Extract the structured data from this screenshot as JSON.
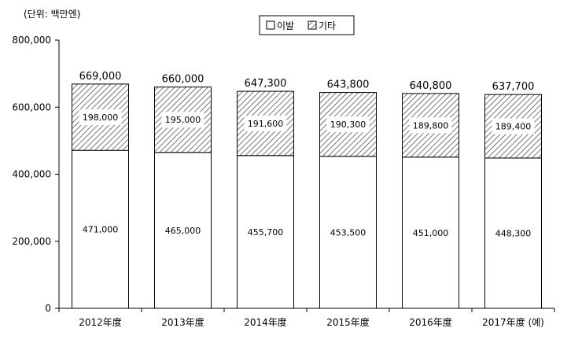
{
  "chart_data": {
    "type": "bar",
    "stacked": true,
    "unit_label": "(단위: 백만엔)",
    "categories": [
      "2012年度",
      "2013年度",
      "2014年度",
      "2015年度",
      "2016年度",
      "2017年度 (예)"
    ],
    "series": [
      {
        "name": "이발",
        "values": [
          471000,
          465000,
          455700,
          453500,
          451000,
          448300
        ],
        "value_labels": [
          "471,000",
          "465,000",
          "455,700",
          "453,500",
          "451,000",
          "448,300"
        ],
        "fill": "#ffffff"
      },
      {
        "name": "기타",
        "values": [
          198000,
          195000,
          191600,
          190300,
          189800,
          189400
        ],
        "value_labels": [
          "198,000",
          "195,000",
          "191,600",
          "190,300",
          "189,800",
          "189,400"
        ],
        "fill": "hatch"
      }
    ],
    "totals": [
      669000,
      660000,
      647300,
      643800,
      640800,
      637700
    ],
    "total_labels": [
      "669,000",
      "660,000",
      "647,300",
      "643,800",
      "640,800",
      "637,700"
    ],
    "ylim": [
      0,
      800000
    ],
    "yticks": [
      0,
      200000,
      400000,
      600000,
      800000
    ],
    "ytick_labels": [
      "0",
      "200,000",
      "400,000",
      "600,000",
      "800,000"
    ],
    "grid": false,
    "legend_position": "top-center",
    "colors": {
      "bar_stroke": "#000000",
      "hatch": "#555555",
      "background": "#ffffff"
    }
  }
}
